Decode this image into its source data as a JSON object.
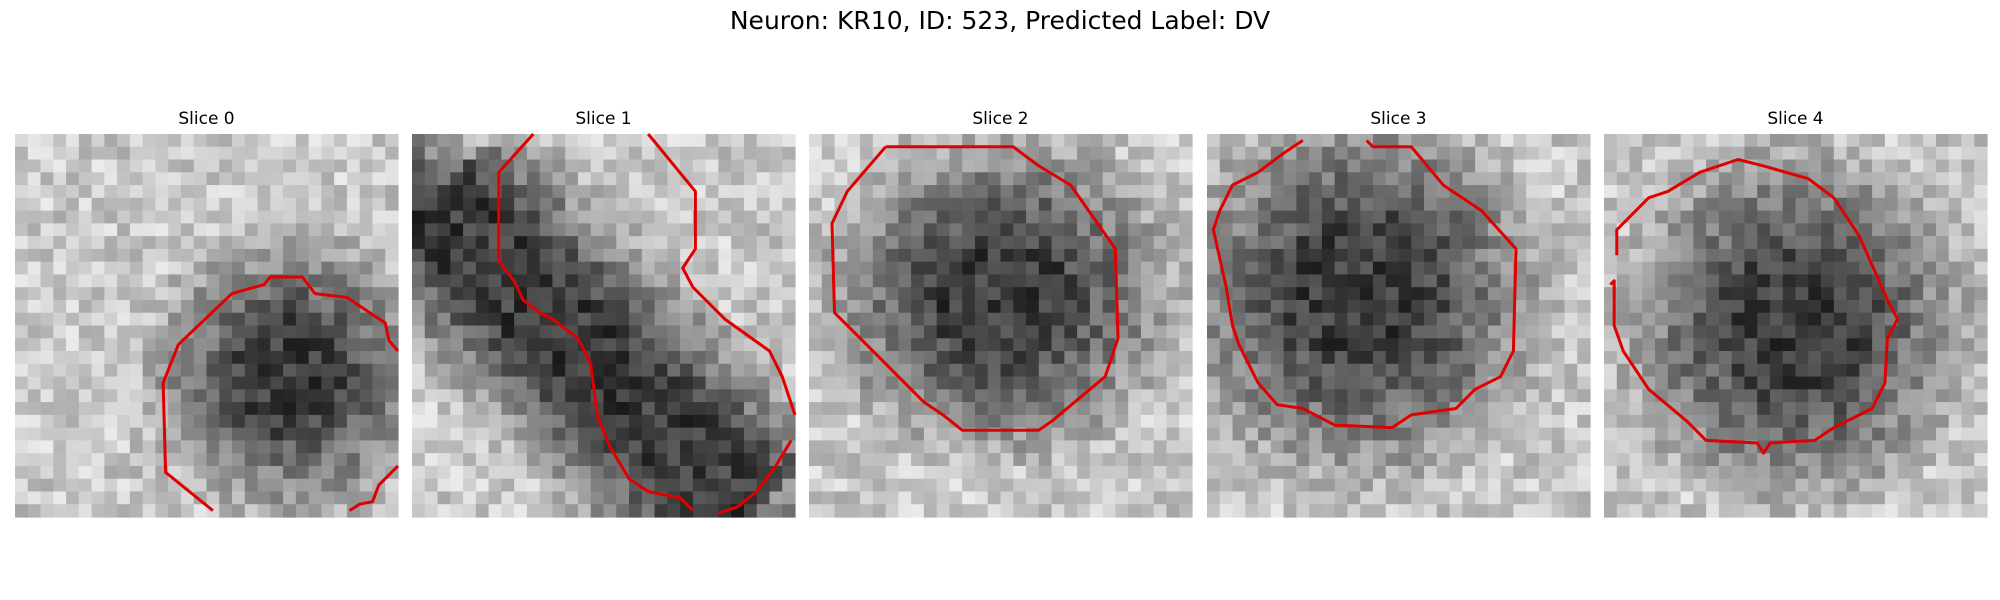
{
  "header": {
    "title": "Neuron: KR10, ID: 523, Predicted Label: DV"
  },
  "panels": [
    {
      "title": "Slice 0"
    },
    {
      "title": "Slice 1"
    },
    {
      "title": "Slice 2"
    },
    {
      "title": "Slice 3"
    },
    {
      "title": "Slice 4"
    }
  ]
}
